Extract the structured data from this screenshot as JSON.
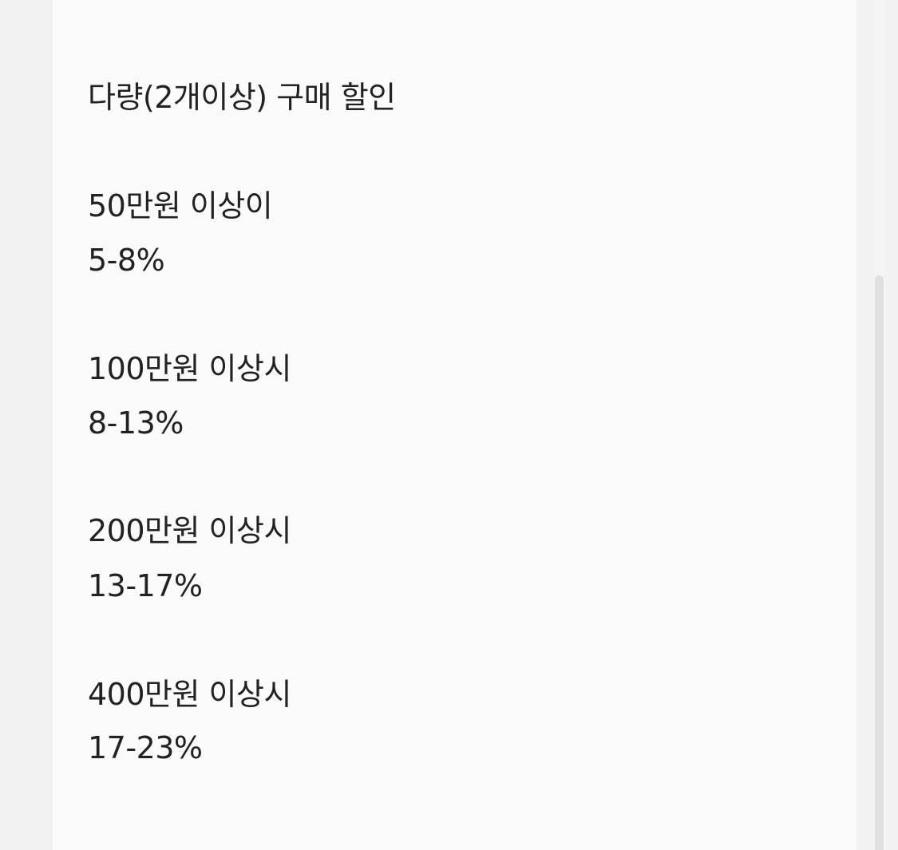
{
  "content": {
    "title": "다량(2개이상) 구매 할인",
    "tiers": [
      {
        "threshold": "50만원 이상이",
        "discount": "5-8%"
      },
      {
        "threshold": "100만원 이상시",
        "discount": "8-13%"
      },
      {
        "threshold": "200만원 이상시",
        "discount": "13-17%"
      },
      {
        "threshold": "400만원 이상시",
        "discount": "17-23%"
      }
    ]
  }
}
